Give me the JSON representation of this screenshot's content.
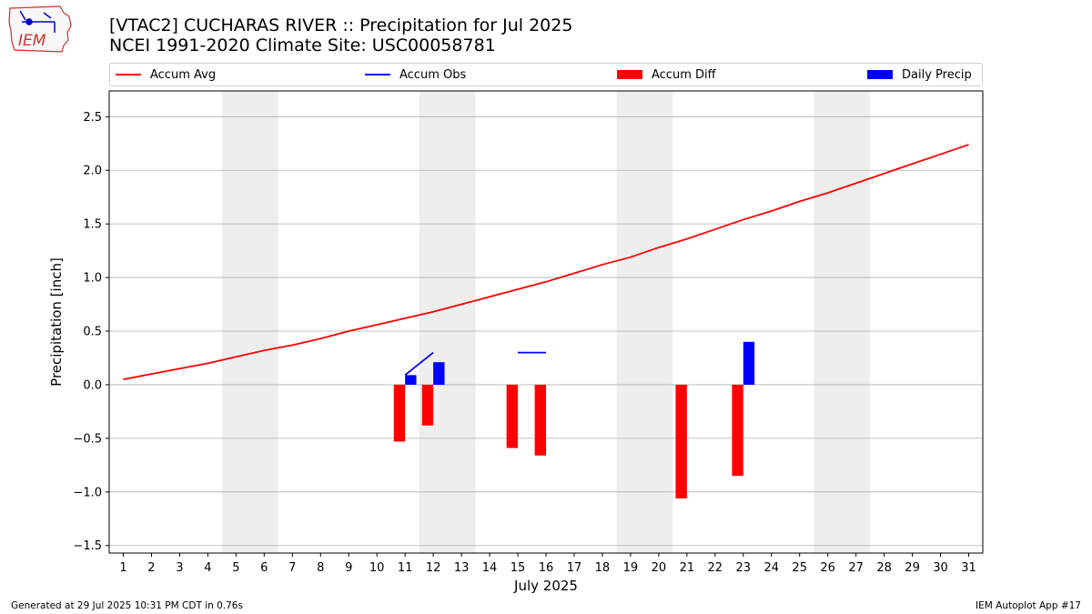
{
  "header": {
    "logo_text": "IEM",
    "title": "[VTAC2] CUCHARAS RIVER :: Precipitation for Jul 2025",
    "subtitle": "NCEI 1991-2020 Climate Site: USC00058781"
  },
  "footer": {
    "left": "Generated at 29 Jul 2025 10:31 PM CDT in 0.76s",
    "right": "IEM Autoplot App #17"
  },
  "colors": {
    "accum_avg": "#ff0000",
    "accum_obs": "#0000ff",
    "accum_diff": "#ff0000",
    "daily_precip": "#0000ff",
    "weekend_shade": "#eeeeee",
    "grid": "#b0b0b0"
  },
  "chart_data": {
    "type": "bar",
    "xlabel": "July 2025",
    "ylabel": "Precipitation [inch]",
    "xlim": [
      0.5,
      31.5
    ],
    "ylim": [
      -1.57,
      2.74
    ],
    "yticks": [
      -1.5,
      -1.0,
      -0.5,
      0.0,
      0.5,
      1.0,
      1.5,
      2.0,
      2.5
    ],
    "ytick_labels": [
      "−1.5",
      "−1.0",
      "−0.5",
      "0.0",
      "0.5",
      "1.0",
      "1.5",
      "2.0",
      "2.5"
    ],
    "x": [
      1,
      2,
      3,
      4,
      5,
      6,
      7,
      8,
      9,
      10,
      11,
      12,
      13,
      14,
      15,
      16,
      17,
      18,
      19,
      20,
      21,
      22,
      23,
      24,
      25,
      26,
      27,
      28,
      29,
      30,
      31
    ],
    "xtick_labels": [
      "1",
      "2",
      "3",
      "4",
      "5",
      "6",
      "7",
      "8",
      "9",
      "10",
      "11",
      "12",
      "13",
      "14",
      "15",
      "16",
      "17",
      "18",
      "19",
      "20",
      "21",
      "22",
      "23",
      "24",
      "25",
      "26",
      "27",
      "28",
      "29",
      "30",
      "31"
    ],
    "grid": "horizontal",
    "legend": "top",
    "weekend_spans": [
      [
        4.5,
        6.5
      ],
      [
        11.5,
        13.5
      ],
      [
        18.5,
        20.5
      ],
      [
        25.5,
        27.5
      ]
    ],
    "series": [
      {
        "name": "Accum Avg",
        "kind": "line",
        "x": [
          1,
          2,
          3,
          4,
          5,
          6,
          7,
          8,
          9,
          10,
          11,
          12,
          13,
          14,
          15,
          16,
          17,
          18,
          19,
          20,
          21,
          22,
          23,
          24,
          25,
          26,
          27,
          28,
          29,
          30,
          31
        ],
        "values": [
          0.05,
          0.1,
          0.15,
          0.2,
          0.26,
          0.32,
          0.37,
          0.43,
          0.5,
          0.56,
          0.62,
          0.68,
          0.75,
          0.82,
          0.89,
          0.96,
          1.04,
          1.12,
          1.19,
          1.28,
          1.36,
          1.45,
          1.54,
          1.62,
          1.71,
          1.79,
          1.88,
          1.97,
          2.06,
          2.15,
          2.24
        ]
      },
      {
        "name": "Accum Obs",
        "kind": "line",
        "segments": [
          {
            "x": [
              11,
              12
            ],
            "values": [
              0.09,
              0.3
            ]
          },
          {
            "x": [
              15,
              16
            ],
            "values": [
              0.3,
              0.3
            ]
          }
        ]
      },
      {
        "name": "Accum Diff",
        "kind": "bar",
        "x": [
          11,
          12,
          15,
          16,
          21,
          23
        ],
        "values": [
          -0.53,
          -0.38,
          -0.59,
          -0.66,
          -1.06,
          -0.85
        ]
      },
      {
        "name": "Daily Precip",
        "kind": "bar",
        "x": [
          11,
          12,
          23
        ],
        "values": [
          0.09,
          0.21,
          0.4
        ]
      }
    ]
  }
}
